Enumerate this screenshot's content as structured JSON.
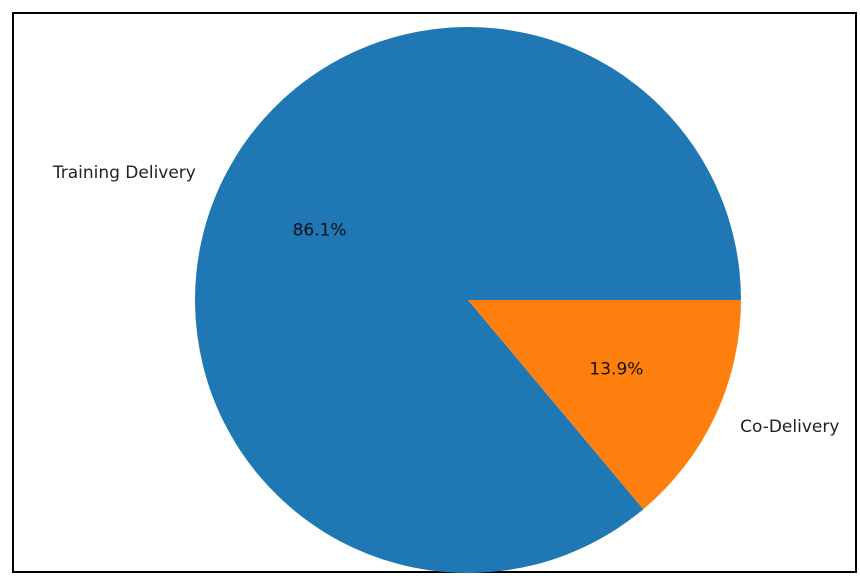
{
  "chart_data": {
    "type": "pie",
    "slices": [
      {
        "label": "Training Delivery",
        "value": 86.1,
        "pct_label": "86.1%",
        "color": "#1f77b4"
      },
      {
        "label": "Co-Delivery",
        "value": 13.9,
        "pct_label": "13.9%",
        "color": "#ff7f0e"
      }
    ],
    "start_angle_deg": 0,
    "direction": "counterclockwise"
  }
}
